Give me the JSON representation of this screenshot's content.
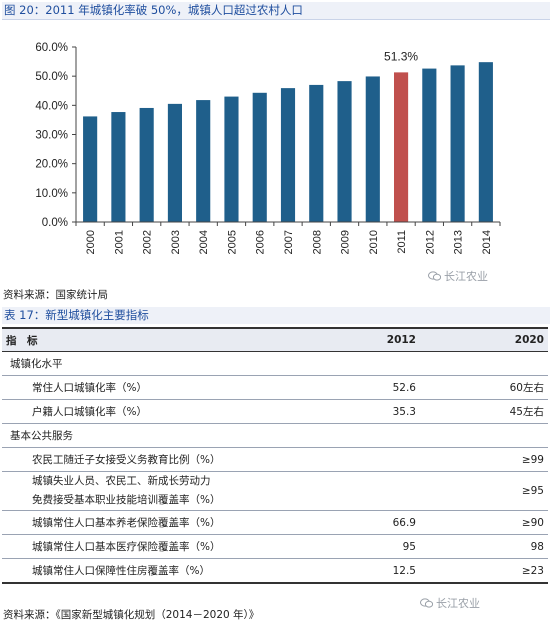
{
  "figure": {
    "title": "图 20：2011 年城镇化率破 50%，城镇人口超过农村人口"
  },
  "chart_data": {
    "type": "bar",
    "categories": [
      "2000",
      "2001",
      "2002",
      "2003",
      "2004",
      "2005",
      "2006",
      "2007",
      "2008",
      "2009",
      "2010",
      "2011",
      "2012",
      "2013",
      "2014"
    ],
    "values": [
      36.2,
      37.7,
      39.1,
      40.5,
      41.8,
      43.0,
      44.3,
      45.9,
      47.0,
      48.3,
      49.9,
      51.3,
      52.6,
      53.7,
      54.8
    ],
    "highlight_index": 11,
    "highlight_label": "51.3%",
    "ylim": [
      0,
      60
    ],
    "yticks": [
      "0.0%",
      "10.0%",
      "20.0%",
      "30.0%",
      "40.0%",
      "50.0%",
      "60.0%"
    ],
    "bar_color": "#1f5f8b",
    "highlight_color": "#c0504d",
    "grid": false
  },
  "chart_source": "资料来源：国家统计局",
  "watermark": "长江农业",
  "table": {
    "title": "表 17：新型城镇化主要指标",
    "headers": [
      "指　标",
      "2012",
      "2020"
    ],
    "rows": [
      {
        "label": "城镇化水平",
        "indent": 0,
        "v2012": "",
        "v2020": ""
      },
      {
        "label": "常住人口城镇化率（%）",
        "indent": 1,
        "v2012": "52.6",
        "v2020": "60左右"
      },
      {
        "label": "户籍人口城镇化率（%）",
        "indent": 1,
        "v2012": "35.3",
        "v2020": "45左右"
      },
      {
        "label": "基本公共服务",
        "indent": 0,
        "v2012": "",
        "v2020": ""
      },
      {
        "label": "农民工随迁子女接受义务教育比例（%）",
        "indent": 1,
        "v2012": "",
        "v2020": "≥99"
      },
      {
        "label": "城镇失业人员、农民工、新成长劳动力",
        "label2": "免费接受基本职业技能培训覆盖率（%）",
        "indent": 1,
        "v2012": "",
        "v2020": "≥95"
      },
      {
        "label": "城镇常住人口基本养老保险覆盖率（%）",
        "indent": 1,
        "v2012": "66.9",
        "v2020": "≥90"
      },
      {
        "label": "城镇常住人口基本医疗保险覆盖率（%）",
        "indent": 1,
        "v2012": "95",
        "v2020": "98"
      },
      {
        "label": "城镇常住人口保障性住房覆盖率（%）",
        "indent": 1,
        "v2012": "12.5",
        "v2020": "≥23"
      }
    ]
  },
  "table_source": "资料来源：《国家新型城镇化规划（2014－2020 年）》"
}
